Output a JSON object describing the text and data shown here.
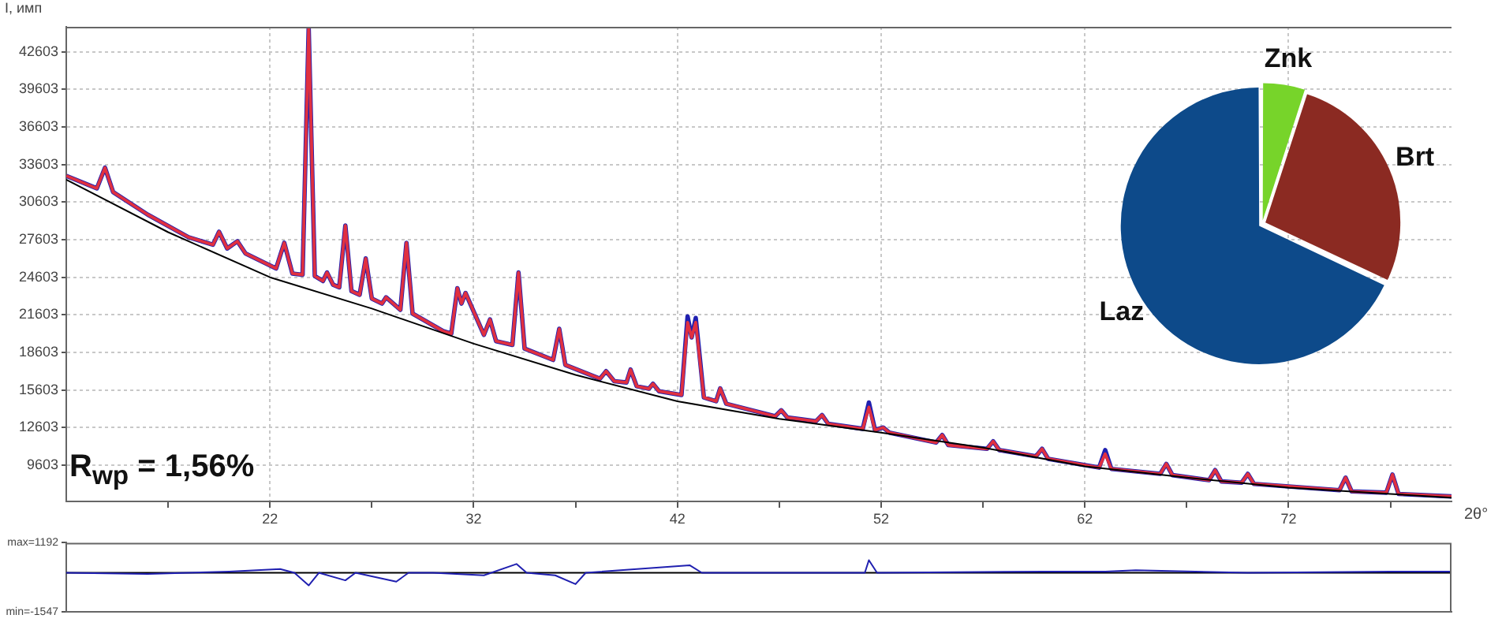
{
  "chart_data": [
    {
      "type": "line",
      "xlabel": "2θ°",
      "ylabel": "I, имп",
      "annotations": [
        "R$_{wp}$ = 1,56%"
      ],
      "xlim": [
        12,
        80
      ],
      "ylim": [
        6700,
        44600
      ],
      "xticks": [
        {
          "value": 17,
          "label": null
        },
        22,
        {
          "value": 27,
          "label": null
        },
        32,
        {
          "value": 37,
          "label": null
        },
        42,
        {
          "value": 47,
          "label": null
        },
        52,
        {
          "value": 57,
          "label": null
        },
        62,
        {
          "value": 67,
          "label": null
        },
        72,
        {
          "value": 77,
          "label": null
        }
      ],
      "yticks": [
        9603,
        12603,
        15603,
        18603,
        21603,
        24603,
        27603,
        30603,
        33603,
        36603,
        39603,
        42603
      ],
      "grid": true,
      "x": [
        12,
        13.5,
        13.9,
        14.3,
        16,
        18,
        19.2,
        19.5,
        19.9,
        20.4,
        20.8,
        22.3,
        22.7,
        23.1,
        23.6,
        23.9,
        24.2,
        24.6,
        24.8,
        25.1,
        25.4,
        25.7,
        26,
        26.4,
        26.7,
        27,
        27.5,
        27.7,
        28.4,
        28.7,
        29,
        30.5,
        30.9,
        31.2,
        31.4,
        31.6,
        32.5,
        32.8,
        33.1,
        33.9,
        34.2,
        34.5,
        35.9,
        36.2,
        36.5,
        38.2,
        38.5,
        38.9,
        39.5,
        39.7,
        40,
        40.6,
        40.8,
        41.1,
        42.2,
        42.5,
        42.7,
        42.9,
        43.3,
        43.9,
        44.1,
        44.4,
        46.8,
        47.1,
        47.4,
        48.8,
        49.1,
        49.4,
        51.1,
        51.4,
        51.7,
        52.1,
        52.4,
        54.7,
        55,
        55.3,
        57.2,
        57.5,
        57.8,
        59.6,
        59.9,
        60.2,
        62.7,
        63,
        63.3,
        65.7,
        66,
        66.3,
        68.1,
        68.4,
        68.7,
        69.7,
        70,
        70.3,
        72,
        74.5,
        74.8,
        75.1,
        76.8,
        77.1,
        77.4,
        80
      ],
      "series": [
        {
          "color": "#000000",
          "x": [
            12,
            17,
            22,
            27,
            32,
            37,
            42,
            47,
            52,
            57,
            62,
            67,
            72,
            77,
            80
          ],
          "values": [
            32400,
            28200,
            24600,
            22100,
            19300,
            16800,
            14700,
            13300,
            12200,
            11000,
            9500,
            8600,
            7800,
            7300,
            7000
          ]
        },
        {
          "color": "#e03040",
          "values": [
            32700,
            31700,
            33350,
            31400,
            29600,
            27800,
            27200,
            28230,
            26900,
            27480,
            26500,
            25300,
            27350,
            24900,
            24800,
            44500,
            24700,
            24300,
            24980,
            24000,
            23800,
            28730,
            23500,
            23200,
            26100,
            22900,
            22500,
            23000,
            22000,
            27350,
            21700,
            20300,
            20100,
            23730,
            22500,
            23350,
            20000,
            21230,
            19500,
            19200,
            24980,
            18900,
            18000,
            20480,
            17600,
            16500,
            17100,
            16300,
            16200,
            17230,
            15900,
            15700,
            16100,
            15500,
            15200,
            21000,
            19800,
            21000,
            15000,
            14700,
            15730,
            14500,
            13500,
            13980,
            13400,
            13100,
            13600,
            12900,
            12500,
            14230,
            12400,
            12600,
            12200,
            11400,
            12000,
            11200,
            10900,
            11500,
            10800,
            10300,
            10900,
            10100,
            9400,
            10500,
            9300,
            8900,
            9700,
            8800,
            8400,
            9200,
            8300,
            8200,
            8900,
            8100,
            7900,
            7600,
            8600,
            7500,
            7400,
            8850,
            7300,
            7100
          ]
        },
        {
          "color": "#2020b0",
          "values": [
            32700,
            31700,
            33350,
            31400,
            29600,
            27800,
            27200,
            28230,
            26900,
            27480,
            26500,
            25300,
            27350,
            24900,
            24800,
            44500,
            24700,
            24300,
            24980,
            24000,
            23800,
            28730,
            23500,
            23200,
            26100,
            22900,
            22500,
            23000,
            22000,
            27350,
            21700,
            20300,
            20100,
            23730,
            22500,
            23350,
            20000,
            21230,
            19500,
            19200,
            24980,
            18900,
            18000,
            20480,
            17600,
            16500,
            17100,
            16300,
            16200,
            17230,
            15900,
            15700,
            16100,
            15500,
            15200,
            21480,
            19800,
            21350,
            15000,
            14700,
            15730,
            14500,
            13500,
            13980,
            13400,
            13100,
            13600,
            12900,
            12500,
            14600,
            12400,
            12600,
            12200,
            11400,
            12000,
            11200,
            10900,
            11500,
            10800,
            10300,
            10900,
            10100,
            9400,
            10800,
            9300,
            8900,
            9700,
            8800,
            8400,
            9200,
            8300,
            8200,
            8900,
            8100,
            7900,
            7600,
            8600,
            7500,
            7400,
            8850,
            7300,
            7100
          ]
        }
      ]
    },
    {
      "type": "line",
      "xlim": [
        12,
        80
      ],
      "ylim": [
        -1547,
        1192
      ],
      "yticks": [
        {
          "value": 1192,
          "label": "max=1192"
        },
        {
          "value": -1547,
          "label": "min=-1547"
        }
      ],
      "tick_labels": "y",
      "ref_lines": [
        {
          "axis": "y",
          "value": 0,
          "color": "#000000"
        }
      ],
      "series": [
        {
          "color": "#2020b0",
          "x": [
            12,
            16,
            20,
            22.5,
            23.2,
            23.9,
            24.4,
            25.7,
            26.2,
            28.2,
            28.8,
            30,
            32.5,
            34.1,
            34.6,
            36,
            37,
            37.5,
            42.6,
            43.2,
            51.2,
            51.4,
            51.8,
            60,
            63,
            64.5,
            70,
            77,
            80
          ],
          "values": [
            0,
            -50,
            50,
            150,
            0,
            -500,
            0,
            -300,
            0,
            -350,
            0,
            0,
            -100,
            350,
            0,
            -100,
            -450,
            0,
            300,
            0,
            0,
            500,
            0,
            50,
            50,
            100,
            0,
            50,
            50
          ]
        }
      ]
    },
    {
      "type": "pie",
      "categories": [
        "Znk",
        "Brt",
        "Laz"
      ],
      "values": [
        5,
        27,
        68
      ],
      "colors": [
        "#77d42a",
        "#8b2a22",
        "#0d4a8a"
      ]
    }
  ]
}
